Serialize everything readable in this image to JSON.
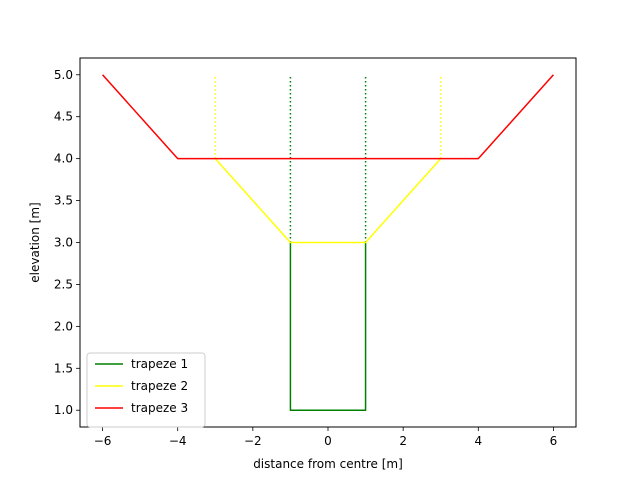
{
  "chart_data": {
    "type": "line",
    "title": "",
    "xlabel": "distance from centre [m]",
    "ylabel": "elevation [m]",
    "xlim": [
      -6.6,
      6.6
    ],
    "ylim": [
      0.8,
      5.2
    ],
    "xticks": [
      -6,
      -4,
      -2,
      0,
      2,
      4,
      6
    ],
    "yticks": [
      1.0,
      1.5,
      2.0,
      2.5,
      3.0,
      3.5,
      4.0,
      4.5,
      5.0
    ],
    "xtick_labels": [
      "−6",
      "−4",
      "−2",
      "0",
      "2",
      "4",
      "6"
    ],
    "ytick_labels": [
      "1.0",
      "1.5",
      "2.0",
      "2.5",
      "3.0",
      "3.5",
      "4.0",
      "4.5",
      "5.0"
    ],
    "grid": false,
    "legend_position": "lower-left",
    "series": [
      {
        "name": "trapeze 1",
        "color": "#008000",
        "x": [
          -1,
          -1,
          1,
          1
        ],
        "y": [
          3,
          1,
          1,
          3
        ],
        "dotted": [
          {
            "x": [
              -1,
              -1
            ],
            "y": [
              3,
              5
            ]
          },
          {
            "x": [
              1,
              1
            ],
            "y": [
              3,
              5
            ]
          }
        ]
      },
      {
        "name": "trapeze 2",
        "color": "#ffff00",
        "x": [
          -3,
          -1,
          1,
          3
        ],
        "y": [
          4,
          3,
          3,
          4
        ],
        "dotted": [
          {
            "x": [
              -3,
              -3
            ],
            "y": [
              4,
              5
            ]
          },
          {
            "x": [
              3,
              3
            ],
            "y": [
              4,
              5
            ]
          }
        ]
      },
      {
        "name": "trapeze 3",
        "color": "#ff0000",
        "x": [
          -6,
          -4,
          4,
          6
        ],
        "y": [
          5,
          4,
          4,
          5
        ],
        "dotted": []
      }
    ]
  }
}
